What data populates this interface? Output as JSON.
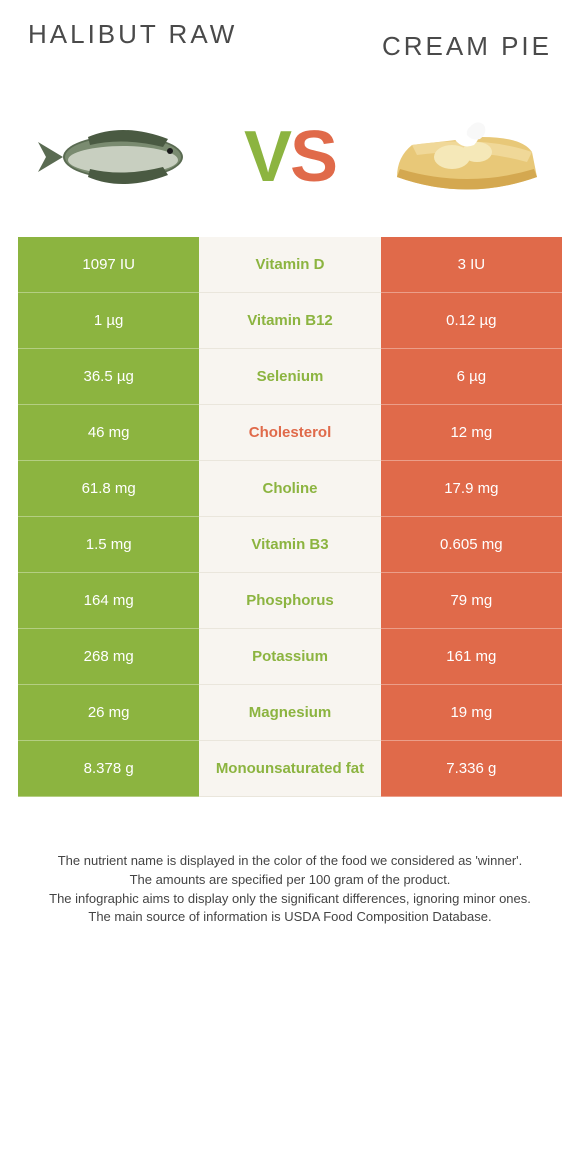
{
  "header": {
    "left_title": "Halibut Raw",
    "right_title": "Cream Pie",
    "vs_v": "V",
    "vs_s": "S"
  },
  "colors": {
    "left": "#8cb440",
    "right": "#e06a4a",
    "mid_bg": "#f8f5f0"
  },
  "rows": [
    {
      "left": "1097 IU",
      "label": "Vitamin D",
      "right": "3 IU",
      "winner": "green"
    },
    {
      "left": "1 µg",
      "label": "Vitamin B12",
      "right": "0.12 µg",
      "winner": "green"
    },
    {
      "left": "36.5 µg",
      "label": "Selenium",
      "right": "6 µg",
      "winner": "green"
    },
    {
      "left": "46 mg",
      "label": "Cholesterol",
      "right": "12 mg",
      "winner": "orange"
    },
    {
      "left": "61.8 mg",
      "label": "Choline",
      "right": "17.9 mg",
      "winner": "green"
    },
    {
      "left": "1.5 mg",
      "label": "Vitamin B3",
      "right": "0.605 mg",
      "winner": "green"
    },
    {
      "left": "164 mg",
      "label": "Phosphorus",
      "right": "79 mg",
      "winner": "green"
    },
    {
      "left": "268 mg",
      "label": "Potassium",
      "right": "161 mg",
      "winner": "green"
    },
    {
      "left": "26 mg",
      "label": "Magnesium",
      "right": "19 mg",
      "winner": "green"
    },
    {
      "left": "8.378 g",
      "label": "Monounsaturated fat",
      "right": "7.336 g",
      "winner": "green"
    }
  ],
  "notes": {
    "line1": "The nutrient name is displayed in the color of the food we considered as 'winner'.",
    "line2": "The amounts are specified per 100 gram of the product.",
    "line3": "The infographic aims to display only the significant differences, ignoring minor ones.",
    "line4": "The main source of information is USDA Food Composition Database."
  }
}
